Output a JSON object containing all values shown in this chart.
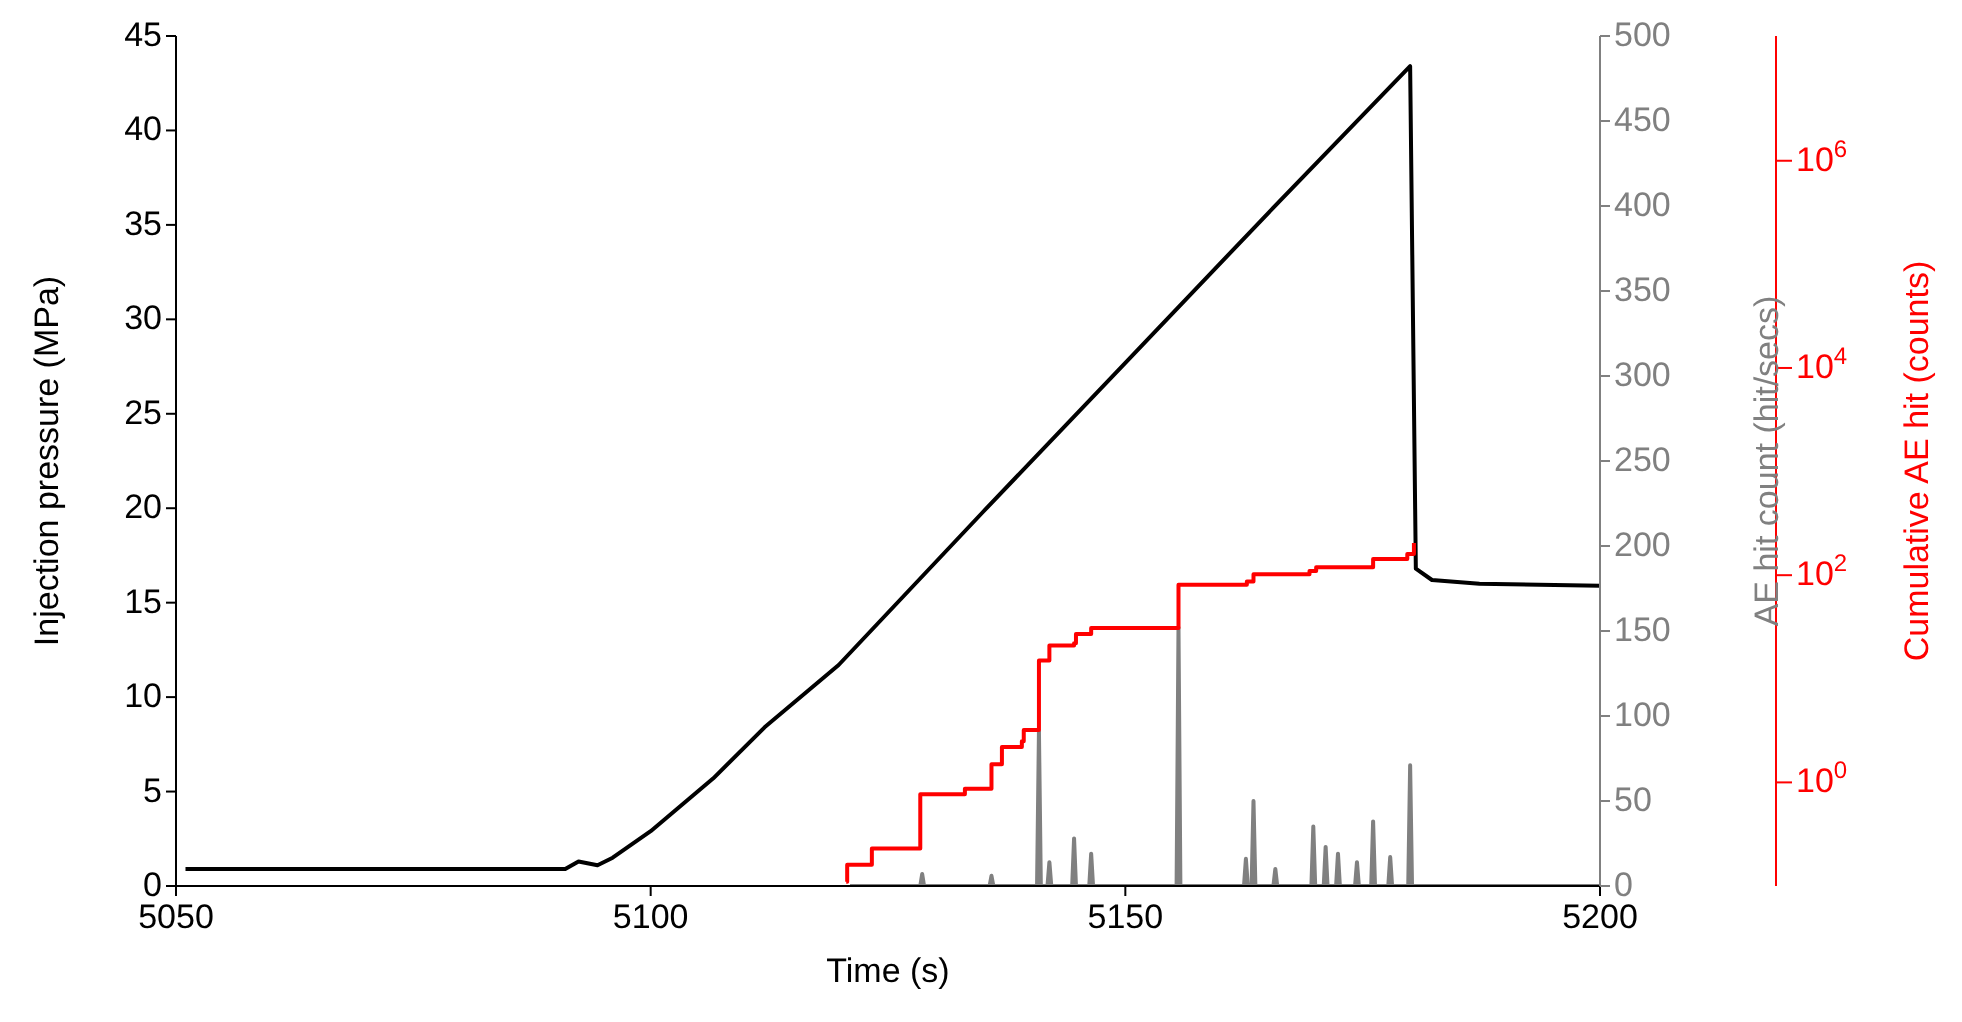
{
  "chart_data": {
    "type": "line",
    "xlabel": "Time (s)",
    "ylabel": "Injection pressure (MPa)",
    "y2label": "AE hit count (hit/secs)",
    "y3label": "Cumulative AE hit (counts)",
    "xlim": [
      5050,
      5200
    ],
    "xticks": [
      5050,
      5100,
      5150,
      5200
    ],
    "ylim": [
      0,
      45
    ],
    "yticks": [
      0,
      5,
      10,
      15,
      20,
      25,
      30,
      35,
      40,
      45
    ],
    "y2lim": [
      0,
      500
    ],
    "y2ticks": [
      0,
      50,
      100,
      150,
      200,
      250,
      300,
      350,
      400,
      450,
      500
    ],
    "y3lim": [
      0.1,
      16000000
    ],
    "y3ticks": [
      {
        "value": 1,
        "label": "10$^{0}$"
      },
      {
        "value": 100,
        "label": "10$^{2}$"
      },
      {
        "value": 10000,
        "label": "10$^{4}$"
      },
      {
        "value": 1000000,
        "label": "10$^{6}$"
      }
    ],
    "log": "y3",
    "series": [
      {
        "type": "line",
        "color": "#000000",
        "x": [
          5051,
          5091,
          5092.4,
          5094.4,
          5096,
          5100,
          5106.6,
          5112,
          5119.8,
          5135,
          5150,
          5165,
          5180,
          5180.6,
          5182.3,
          5187.3,
          5200
        ],
        "values": [
          0.9,
          0.9,
          1.3,
          1.1,
          1.5,
          2.9,
          5.7,
          8.4,
          11.7,
          19.8,
          27.7,
          35.6,
          43.4,
          16.8,
          16.2,
          16,
          15.9
        ]
      },
      {
        "type": "line",
        "axis": "y2",
        "color": "#808080",
        "x": [
          5121,
          5128.4,
          5128.6,
          5128.8,
          5135.7,
          5135.9,
          5136.1,
          5140.7,
          5140.9,
          5141.1,
          5141.8,
          5142,
          5142.2,
          5144.4,
          5144.6,
          5144.8,
          5146.2,
          5146.4,
          5146.6,
          5155.4,
          5155.6,
          5155.8,
          5162.5,
          5162.7,
          5162.9,
          5163.3,
          5163.5,
          5163.7,
          5165.6,
          5165.8,
          5166,
          5169.6,
          5169.8,
          5170,
          5170.9,
          5171.1,
          5171.3,
          5172.2,
          5172.4,
          5172.6,
          5174.2,
          5174.4,
          5174.6,
          5175.9,
          5176.1,
          5176.3,
          5177.7,
          5177.9,
          5178.1,
          5179.8,
          5180,
          5180.2,
          5200
        ],
        "values": [
          0,
          0,
          7,
          0,
          0,
          6,
          0,
          0,
          91,
          0,
          0,
          14,
          0,
          0,
          28,
          0,
          0,
          19,
          0,
          0,
          152,
          0,
          0,
          16,
          0,
          0,
          50,
          0,
          0,
          10,
          0,
          0,
          35,
          0,
          0,
          23,
          0,
          0,
          19,
          0,
          0,
          14,
          0,
          0,
          38,
          0,
          0,
          17,
          0,
          0,
          71,
          0,
          0
        ]
      },
      {
        "type": "step",
        "axis": "y3",
        "color": "#ff0000",
        "x": [
          5120.6,
          5120.7,
          5123.3,
          5128.4,
          5133.1,
          5135.9,
          5137,
          5139.1,
          5139.3,
          5140.9,
          5142,
          5144.6,
          5144.8,
          5146.4,
          5155.6,
          5162.8,
          5163.5,
          5169.4,
          5170.1,
          5176.1,
          5179.7,
          5180.4
        ],
        "values": [
          0.11,
          0.16,
          0.23,
          0.77,
          0.87,
          1.5,
          2.2,
          2.5,
          3.2,
          15,
          21,
          22,
          27,
          31,
          81,
          87,
          102,
          110,
          119,
          143,
          160,
          205
        ]
      }
    ]
  }
}
